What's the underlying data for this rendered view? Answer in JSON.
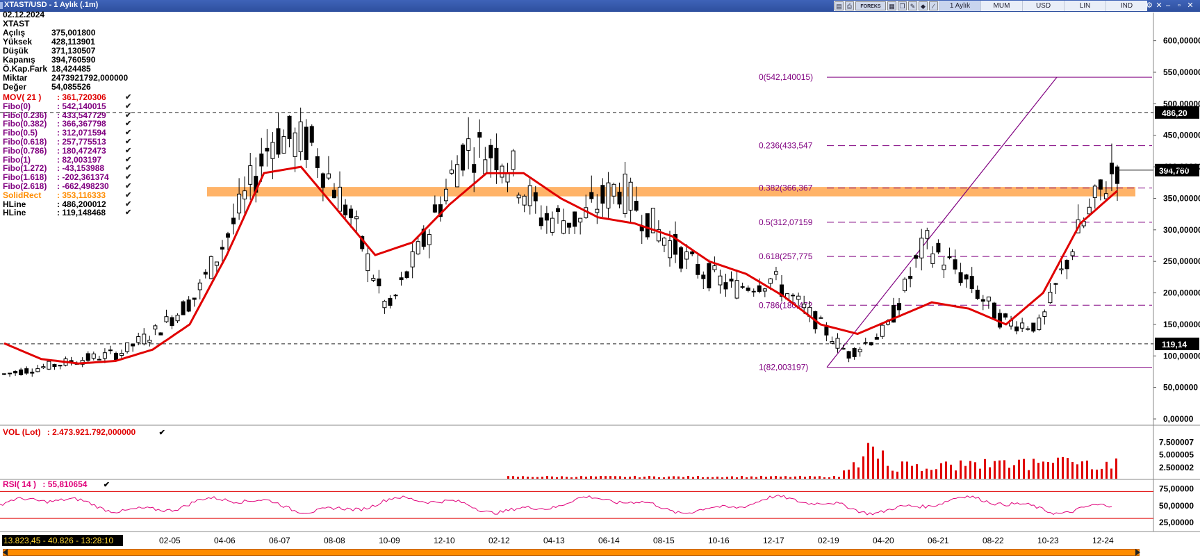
{
  "window": {
    "title": "XTAST/USD - 1 Aylık (.1m)"
  },
  "toolbar": {
    "icons": [
      "chart-icon",
      "print-icon",
      "forex-logo",
      "tile-icon",
      "copy-icon",
      "pen-icon",
      "draw-icon",
      "line-icon"
    ],
    "brand": "FOREKS",
    "buttons": [
      "1 Aylık",
      "MUM",
      "USD",
      "LIN",
      "IND"
    ],
    "active_button": "1 Aylık"
  },
  "info": {
    "date": "02.12.2024",
    "symbol": "XTAST",
    "rows": [
      {
        "k": "Açılış",
        "v": "375,001800"
      },
      {
        "k": "Yüksek",
        "v": "428,113901"
      },
      {
        "k": "Düşük",
        "v": "371,130507"
      },
      {
        "k": "Kapanış",
        "v": "394,760590"
      },
      {
        "k": "Ö.Kap.Fark",
        "v": "18,424485"
      },
      {
        "k": "Miktar",
        "v": "2473921792,000000"
      },
      {
        "k": "Değer",
        "v": "54,085526"
      }
    ]
  },
  "indicators": [
    {
      "k": "MOV( 21 )",
      "v": ": 361,720306",
      "color": "#e00000"
    },
    {
      "k": "Fibo(0)",
      "v": ": 542,140015",
      "color": "#800080"
    },
    {
      "k": "Fibo(0.236)",
      "v": ": 433,547729",
      "color": "#800080"
    },
    {
      "k": "Fibo(0.382)",
      "v": ": 366,367798",
      "color": "#800080"
    },
    {
      "k": "Fibo(0.5)",
      "v": ": 312,071594",
      "color": "#800080"
    },
    {
      "k": "Fibo(0.618)",
      "v": ": 257,775513",
      "color": "#800080"
    },
    {
      "k": "Fibo(0.786)",
      "v": ": 180,472473",
      "color": "#800080"
    },
    {
      "k": "Fibo(1)",
      "v": ": 82,003197",
      "color": "#800080"
    },
    {
      "k": "Fibo(1.272)",
      "v": ": -43,153988",
      "color": "#800080"
    },
    {
      "k": "Fibo(1.618)",
      "v": ": -202,361374",
      "color": "#800080"
    },
    {
      "k": "Fibo(2.618)",
      "v": ": -662,498230",
      "color": "#800080"
    },
    {
      "k": "SolidRect",
      "v": ": 353,116333",
      "color": "#ff8c00"
    },
    {
      "k": "HLine",
      "v": ": 486,200012",
      "color": "#000000"
    },
    {
      "k": "HLine",
      "v": ": 119,148468",
      "color": "#000000"
    }
  ],
  "volume_panel": {
    "label": "VOL (Lot)",
    "value": ": 2.473.921.792,000000",
    "color": "#e00000"
  },
  "rsi_panel": {
    "label": "RSI( 14 )",
    "value": ": 55,810654",
    "color": "#e0007a"
  },
  "status": {
    "text": "13.823,45 - 40.826 - 13:28:10"
  },
  "colors": {
    "candle": "#000000",
    "ma": "#e00000",
    "fibo": "#800080",
    "rect": "#ffa64d",
    "volume": "#e00000",
    "rsi": "#e0007a",
    "rsi_bounds": "#e00000"
  },
  "chart_data": [
    {
      "type": "candlestick",
      "title": "XTAST/USD - 1 Aylık (.1m)",
      "x_ticks": [
        "02-05",
        "04-06",
        "06-07",
        "08-08",
        "10-09",
        "12-10",
        "02-12",
        "04-13",
        "06-14",
        "08-15",
        "10-16",
        "12-17",
        "02-19",
        "04-20",
        "06-21",
        "08-22",
        "10-23",
        "12-24"
      ],
      "y_ticks": [
        "0,00000",
        "50,00000",
        "100,00000",
        "150,00000",
        "200,00000",
        "250,00000",
        "300,00000",
        "350,00000",
        "400,00000",
        "450,00000",
        "500,00000",
        "550,00000",
        "600,00000"
      ],
      "ylim": [
        0,
        620
      ],
      "candles_approx": [
        [
          80,
          62
        ],
        [
          76,
          88
        ],
        [
          90,
          98
        ],
        [
          98,
          110
        ],
        [
          132,
          150
        ],
        [
          190,
          200
        ],
        [
          260,
          365
        ],
        [
          420,
          480
        ],
        [
          470,
          400
        ],
        [
          360,
          290
        ],
        [
          150,
          190
        ],
        [
          250,
          330
        ],
        [
          395,
          470
        ],
        [
          470,
          370
        ],
        [
          350,
          290
        ],
        [
          330,
          300
        ],
        [
          350,
          390
        ],
        [
          330,
          270
        ],
        [
          250,
          230
        ],
        [
          215,
          200
        ],
        [
          230,
          215
        ],
        [
          190,
          140
        ],
        [
          95,
          110
        ],
        [
          125,
          160
        ],
        [
          300,
          260
        ],
        [
          250,
          200
        ],
        [
          170,
          140
        ],
        [
          135,
          160
        ],
        [
          265,
          330
        ],
        [
          390,
          420
        ]
      ],
      "ma_series_approx": [
        120,
        95,
        88,
        92,
        110,
        150,
        260,
        390,
        400,
        330,
        260,
        280,
        340,
        390,
        390,
        350,
        320,
        310,
        290,
        250,
        230,
        195,
        150,
        135,
        160,
        185,
        175,
        150,
        200,
        310,
        362
      ],
      "fibonacci": [
        {
          "label": "0(542,140015)",
          "value": 542.14
        },
        {
          "label": "0.236(433,547",
          "value": 433.547
        },
        {
          "label": "0.382(366,367",
          "value": 366.367
        },
        {
          "label": "0.5(312,07159",
          "value": 312.07159
        },
        {
          "label": "0.618(257,775",
          "value": 257.775
        },
        {
          "label": "0.786(180,472",
          "value": 180.472
        },
        {
          "label": "1(82,003197)",
          "value": 82.003197
        }
      ],
      "hlines": [
        {
          "value": 486.2,
          "label": "486,20"
        },
        {
          "value": 119.14,
          "label": "119,14"
        }
      ],
      "last_price": {
        "value": 394.76,
        "label": "394,760"
      },
      "solid_rect": {
        "low": 353.1,
        "high": 368.0
      },
      "grid": false
    },
    {
      "type": "bar",
      "title": "VOL (Lot)",
      "y_ticks": [
        "7.500007",
        "5.000005",
        "2.500002"
      ],
      "ylim": [
        0,
        8.5
      ]
    },
    {
      "type": "line",
      "title": "RSI( 14 )",
      "y_ticks": [
        "75,00000",
        "50,00000",
        "25,00000"
      ],
      "ylim": [
        15,
        90
      ],
      "bounds": [
        70,
        30
      ]
    }
  ]
}
